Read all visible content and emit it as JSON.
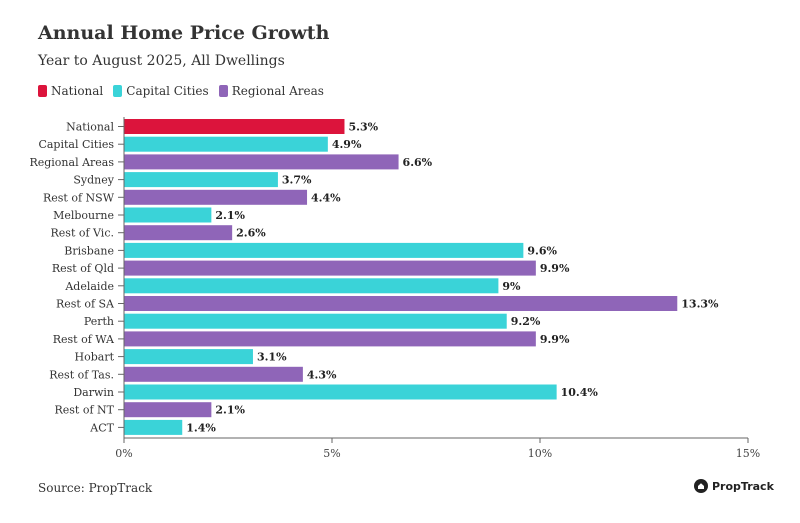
{
  "chart_data": {
    "type": "bar",
    "orientation": "horizontal",
    "title": "Annual Home Price Growth",
    "subtitle": "Year to August 2025, All Dwellings",
    "categories": [
      "National",
      "Capital Cities",
      "Regional Areas",
      "Sydney",
      "Rest of NSW",
      "Melbourne",
      "Rest of Vic.",
      "Brisbane",
      "Rest of Qld",
      "Adelaide",
      "Rest of SA",
      "Perth",
      "Rest of WA",
      "Hobart",
      "Rest of Tas.",
      "Darwin",
      "Rest of NT",
      "ACT"
    ],
    "values": [
      5.3,
      4.9,
      6.6,
      3.7,
      4.4,
      2.1,
      2.6,
      9.6,
      9.9,
      9,
      13.3,
      9.2,
      9.9,
      3.1,
      4.3,
      10.4,
      2.1,
      1.4
    ],
    "value_labels": [
      "5.3%",
      "4.9%",
      "6.6%",
      "3.7%",
      "4.4%",
      "2.1%",
      "2.6%",
      "9.6%",
      "9.9%",
      "9%",
      "13.3%",
      "9.2%",
      "9.9%",
      "3.1%",
      "4.3%",
      "10.4%",
      "2.1%",
      "1.4%"
    ],
    "groups": [
      "National",
      "Capital Cities",
      "Regional Areas",
      "Capital Cities",
      "Regional Areas",
      "Capital Cities",
      "Regional Areas",
      "Capital Cities",
      "Regional Areas",
      "Capital Cities",
      "Regional Areas",
      "Capital Cities",
      "Regional Areas",
      "Capital Cities",
      "Regional Areas",
      "Capital Cities",
      "Regional Areas",
      "Capital Cities"
    ],
    "legend": [
      {
        "label": "National",
        "color": "#dc143c"
      },
      {
        "label": "Capital Cities",
        "color": "#3ad3d8"
      },
      {
        "label": "Regional Areas",
        "color": "#8f65b8"
      }
    ],
    "xlim": [
      0,
      15
    ],
    "xticks": [
      0,
      5,
      10,
      15
    ],
    "xtick_labels": [
      "0%",
      "5%",
      "10%",
      "15%"
    ],
    "xlabel": "",
    "ylabel": "",
    "grid": false,
    "legend_position": "top-left"
  },
  "footer": {
    "source": "Source: PropTrack",
    "brand": "PropTrack"
  }
}
